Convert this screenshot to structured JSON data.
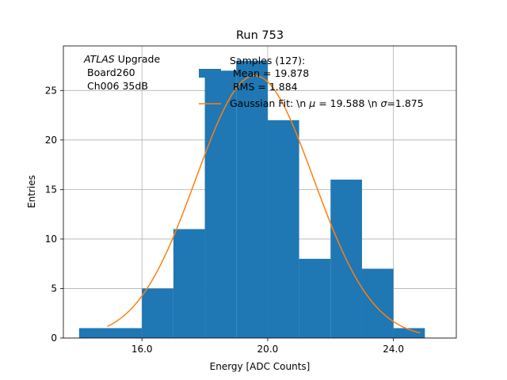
{
  "chart_data": {
    "type": "histogram",
    "title": "Run 753",
    "xlabel": "Energy [ADC Counts]",
    "ylabel": "Entries",
    "xlim": [
      13.5,
      26.0
    ],
    "ylim": [
      0,
      29.5
    ],
    "xticks": [
      16.0,
      20.0,
      24.0
    ],
    "xtick_labels": [
      "16.0",
      "20.0",
      "24.0"
    ],
    "yticks": [
      0,
      5,
      10,
      15,
      20,
      25
    ],
    "yticks_labels": [
      "0",
      "5",
      "10",
      "15",
      "20",
      "25"
    ],
    "grid": true,
    "bins": [
      {
        "x0": 14,
        "x1": 15,
        "count": 1
      },
      {
        "x0": 15,
        "x1": 16,
        "count": 1
      },
      {
        "x0": 16,
        "x1": 17,
        "count": 5
      },
      {
        "x0": 17,
        "x1": 18,
        "count": 11
      },
      {
        "x0": 18,
        "x1": 19,
        "count": 27
      },
      {
        "x0": 19,
        "x1": 20,
        "count": 28
      },
      {
        "x0": 20,
        "x1": 21,
        "count": 22
      },
      {
        "x0": 21,
        "x1": 22,
        "count": 8
      },
      {
        "x0": 22,
        "x1": 23,
        "count": 16
      },
      {
        "x0": 23,
        "x1": 24,
        "count": 7
      },
      {
        "x0": 24,
        "x1": 25,
        "count": 1
      }
    ],
    "bar_color": "#1f77b4",
    "fit": {
      "label": "Gaussian Fit: \\n $\\mu$ = 19.588 \\n $\\sigma$=1.875",
      "mu": 19.588,
      "sigma": 1.875,
      "amplitude": 26.5,
      "x_range": [
        14.9,
        24.85
      ],
      "color": "#ff7f0e"
    },
    "legend": {
      "location": "top-right",
      "samples_label": "Samples (127):",
      "mean_label": "Mean = 19.878",
      "rms_label": "RMS = 1.884"
    },
    "annotation": {
      "atlas": "ATLAS",
      "upgrade": " Upgrade",
      "board": "Board260",
      "channel": "Ch006 35dB"
    }
  }
}
